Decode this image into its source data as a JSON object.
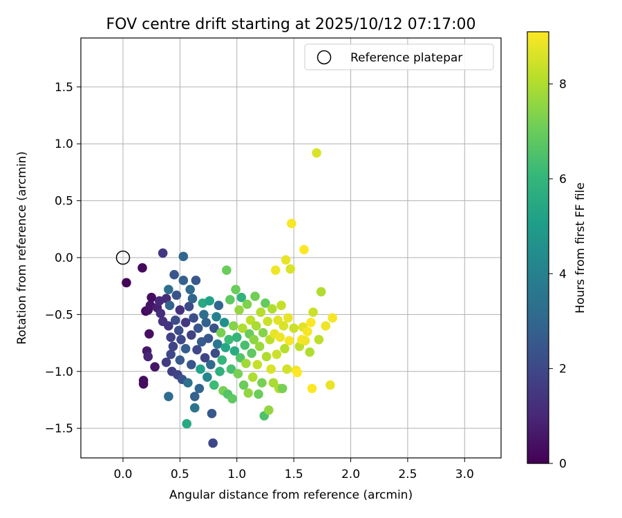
{
  "chart_data": {
    "type": "scatter",
    "title": "FOV centre drift starting at 2025/10/12 07:17:00",
    "xlabel": "Angular distance from reference (arcmin)",
    "ylabel": "Rotation from reference (arcmin)",
    "xlim": [
      -0.37,
      3.32
    ],
    "ylim": [
      -1.76,
      1.93
    ],
    "xticks": [
      0.0,
      0.5,
      1.0,
      1.5,
      2.0,
      2.5,
      3.0
    ],
    "xtick_labels": [
      "0.0",
      "0.5",
      "1.0",
      "1.5",
      "2.0",
      "2.5",
      "3.0"
    ],
    "yticks": [
      -1.5,
      -1.0,
      -0.5,
      0.0,
      0.5,
      1.0,
      1.5
    ],
    "ytick_labels": [
      "−1.5",
      "−1.0",
      "−0.5",
      "0.0",
      "0.5",
      "1.0",
      "1.5"
    ],
    "grid": true,
    "legend": {
      "placement": "top-right",
      "entries": [
        "Reference platepar"
      ]
    },
    "reference_point": {
      "x": 0.0,
      "y": 0.0,
      "label": "Reference platepar"
    },
    "colorbar": {
      "label": "Hours from first FF file",
      "colormap": "viridis",
      "range": [
        0,
        9.1
      ],
      "ticks": [
        0,
        2,
        4,
        6,
        8
      ],
      "tick_labels": [
        "0",
        "2",
        "4",
        "6",
        "8"
      ],
      "colors": [
        "#440154",
        "#482878",
        "#3e4989",
        "#31688e",
        "#26828e",
        "#1f9e89",
        "#35b779",
        "#6ece58",
        "#b5de2b",
        "#fde725"
      ]
    },
    "series": [
      {
        "name": "FOV centre drift",
        "points": [
          [
            0.03,
            -0.22,
            0.1
          ],
          [
            0.17,
            -0.09,
            0.2
          ],
          [
            0.18,
            -1.08,
            0.3
          ],
          [
            0.18,
            -1.11,
            0.3
          ],
          [
            0.2,
            -0.47,
            0.2
          ],
          [
            0.22,
            -0.46,
            0.4
          ],
          [
            0.24,
            -0.42,
            0.5
          ],
          [
            0.23,
            -0.67,
            0.4
          ],
          [
            0.21,
            -0.82,
            0.6
          ],
          [
            0.22,
            -0.87,
            0.9
          ],
          [
            0.25,
            -0.35,
            0.3
          ],
          [
            0.28,
            -0.96,
            0.5
          ],
          [
            0.3,
            -0.44,
            0.8
          ],
          [
            0.32,
            -0.38,
            1.0
          ],
          [
            0.33,
            -0.49,
            1.2
          ],
          [
            0.35,
            -0.56,
            1.3
          ],
          [
            0.35,
            0.04,
            1.5
          ],
          [
            0.38,
            -0.36,
            1.1
          ],
          [
            0.38,
            -0.92,
            1.6
          ],
          [
            0.4,
            -0.6,
            1.4
          ],
          [
            0.4,
            -1.22,
            3.2
          ],
          [
            0.4,
            -0.28,
            3.3
          ],
          [
            0.41,
            -0.42,
            2.9
          ],
          [
            0.42,
            -0.7,
            1.8
          ],
          [
            0.42,
            -0.85,
            2.0
          ],
          [
            0.43,
            -1.0,
            1.7
          ],
          [
            0.44,
            -0.78,
            1.9
          ],
          [
            0.45,
            -0.15,
            2.4
          ],
          [
            0.46,
            -0.55,
            2.1
          ],
          [
            0.47,
            -0.33,
            2.3
          ],
          [
            0.48,
            -1.03,
            1.9
          ],
          [
            0.49,
            -0.64,
            2.2
          ],
          [
            0.5,
            -0.46,
            1.3
          ],
          [
            0.5,
            -0.9,
            2.6
          ],
          [
            0.51,
            -0.72,
            2.0
          ],
          [
            0.52,
            -1.07,
            2.3
          ],
          [
            0.53,
            -0.2,
            2.8
          ],
          [
            0.53,
            0.01,
            3.0
          ],
          [
            0.55,
            -0.57,
            1.5
          ],
          [
            0.55,
            -0.8,
            2.7
          ],
          [
            0.56,
            -1.46,
            5.5
          ],
          [
            0.57,
            -1.1,
            3.4
          ],
          [
            0.58,
            -0.43,
            2.1
          ],
          [
            0.59,
            -0.28,
            3.1
          ],
          [
            0.6,
            -0.68,
            1.8
          ],
          [
            0.6,
            -0.94,
            2.5
          ],
          [
            0.61,
            -0.36,
            2.9
          ],
          [
            0.62,
            -0.53,
            2.2
          ],
          [
            0.63,
            -1.32,
            3.5
          ],
          [
            0.63,
            -1.22,
            2.8
          ],
          [
            0.64,
            -0.2,
            2.5
          ],
          [
            0.65,
            -0.81,
            2.0
          ],
          [
            0.66,
            -0.62,
            2.4
          ],
          [
            0.67,
            -1.15,
            3.0
          ],
          [
            0.68,
            -0.98,
            5.2
          ],
          [
            0.69,
            -0.74,
            2.6
          ],
          [
            0.7,
            -0.4,
            5.5
          ],
          [
            0.71,
            -0.5,
            3.3
          ],
          [
            0.72,
            -0.88,
            1.9
          ],
          [
            0.73,
            -0.57,
            2.8
          ],
          [
            0.74,
            -1.05,
            4.2
          ],
          [
            0.75,
            -0.71,
            2.4
          ],
          [
            0.76,
            -0.38,
            5.2
          ],
          [
            0.77,
            -0.94,
            3.1
          ],
          [
            0.78,
            -1.37,
            2.5
          ],
          [
            0.79,
            -1.63,
            2.0
          ],
          [
            0.8,
            -0.62,
            2.3
          ],
          [
            0.8,
            -1.12,
            6.2
          ],
          [
            0.81,
            -0.84,
            2.1
          ],
          [
            0.82,
            -0.52,
            4.0
          ],
          [
            0.83,
            -0.76,
            3.6
          ],
          [
            0.84,
            -0.42,
            3.0
          ],
          [
            0.85,
            -1.0,
            5.8
          ],
          [
            0.86,
            -0.66,
            7.2
          ],
          [
            0.87,
            -0.9,
            6.0
          ],
          [
            0.88,
            -1.17,
            7.2
          ],
          [
            0.89,
            -0.57,
            4.6
          ],
          [
            0.9,
            -0.79,
            5.4
          ],
          [
            0.91,
            -0.11,
            7.0
          ],
          [
            0.92,
            -1.2,
            6.6
          ],
          [
            0.93,
            -0.72,
            6.2
          ],
          [
            0.94,
            -0.37,
            6.8
          ],
          [
            0.95,
            -0.98,
            6.4
          ],
          [
            0.96,
            -1.24,
            6.8
          ],
          [
            0.97,
            -0.6,
            7.4
          ],
          [
            0.98,
            -0.82,
            5.6
          ],
          [
            0.99,
            -0.28,
            7.0
          ],
          [
            1.0,
            -0.7,
            6.0
          ],
          [
            1.01,
            -1.02,
            7.2
          ],
          [
            1.02,
            -0.46,
            7.6
          ],
          [
            1.03,
            -0.88,
            6.6
          ],
          [
            1.04,
            -0.35,
            5.9
          ],
          [
            1.05,
            -0.62,
            8.0
          ],
          [
            1.06,
            -1.12,
            7.0
          ],
          [
            1.07,
            -0.77,
            6.4
          ],
          [
            1.08,
            -0.93,
            7.8
          ],
          [
            1.09,
            -0.41,
            7.3
          ],
          [
            1.1,
            -1.19,
            7.6
          ],
          [
            1.11,
            -0.67,
            7.0
          ],
          [
            1.12,
            -0.55,
            8.2
          ],
          [
            1.13,
            -0.84,
            6.8
          ],
          [
            1.14,
            -1.05,
            8.0
          ],
          [
            1.15,
            -0.72,
            7.5
          ],
          [
            1.16,
            -0.34,
            7.1
          ],
          [
            1.17,
            -0.6,
            7.9
          ],
          [
            1.18,
            -0.94,
            8.3
          ],
          [
            1.19,
            -1.2,
            7.0
          ],
          [
            1.2,
            -0.78,
            7.7
          ],
          [
            1.21,
            -0.48,
            8.1
          ],
          [
            1.22,
            -1.1,
            7.2
          ],
          [
            1.23,
            -0.66,
            7.4
          ],
          [
            1.24,
            -1.39,
            6.5
          ],
          [
            1.25,
            -0.4,
            6.9
          ],
          [
            1.26,
            -0.87,
            8.0
          ],
          [
            1.27,
            -0.56,
            8.4
          ],
          [
            1.28,
            -1.34,
            7.6
          ],
          [
            1.29,
            -0.72,
            8.2
          ],
          [
            1.3,
            -0.98,
            8.6
          ],
          [
            1.31,
            -0.45,
            8.0
          ],
          [
            1.32,
            -1.1,
            7.9
          ],
          [
            1.33,
            -0.67,
            8.8
          ],
          [
            1.34,
            -0.11,
            8.9
          ],
          [
            1.35,
            -0.85,
            8.4
          ],
          [
            1.36,
            -0.55,
            8.7
          ],
          [
            1.37,
            -1.15,
            8.0
          ],
          [
            1.38,
            -0.7,
            8.9
          ],
          [
            1.39,
            -0.42,
            8.3
          ],
          [
            1.4,
            -1.15,
            7.2
          ],
          [
            1.41,
            -0.6,
            8.6
          ],
          [
            1.42,
            -0.8,
            8.1
          ],
          [
            1.43,
            -0.02,
            8.8
          ],
          [
            1.44,
            -0.98,
            8.5
          ],
          [
            1.45,
            -0.53,
            8.8
          ],
          [
            1.46,
            -0.73,
            9.0
          ],
          [
            1.47,
            -0.1,
            8.6
          ],
          [
            1.48,
            0.3,
            9.0
          ],
          [
            1.5,
            -0.62,
            8.4
          ],
          [
            1.52,
            -0.99,
            8.9
          ],
          [
            1.53,
            -1.01,
            9.1
          ],
          [
            1.55,
            -0.78,
            8.2
          ],
          [
            1.57,
            -0.72,
            9.0
          ],
          [
            1.58,
            -0.61,
            8.7
          ],
          [
            1.59,
            0.07,
            9.1
          ],
          [
            1.6,
            -0.73,
            8.9
          ],
          [
            1.62,
            -0.65,
            9.0
          ],
          [
            1.64,
            -0.83,
            8.0
          ],
          [
            1.65,
            -0.57,
            9.1
          ],
          [
            1.66,
            -1.15,
            9.1
          ],
          [
            1.67,
            -0.48,
            8.4
          ],
          [
            1.7,
            0.92,
            8.6
          ],
          [
            1.72,
            -0.72,
            8.2
          ],
          [
            1.74,
            -0.3,
            8.0
          ],
          [
            1.78,
            -0.6,
            8.9
          ],
          [
            1.82,
            -1.12,
            8.8
          ],
          [
            1.84,
            -0.53,
            9.0
          ]
        ]
      }
    ]
  }
}
